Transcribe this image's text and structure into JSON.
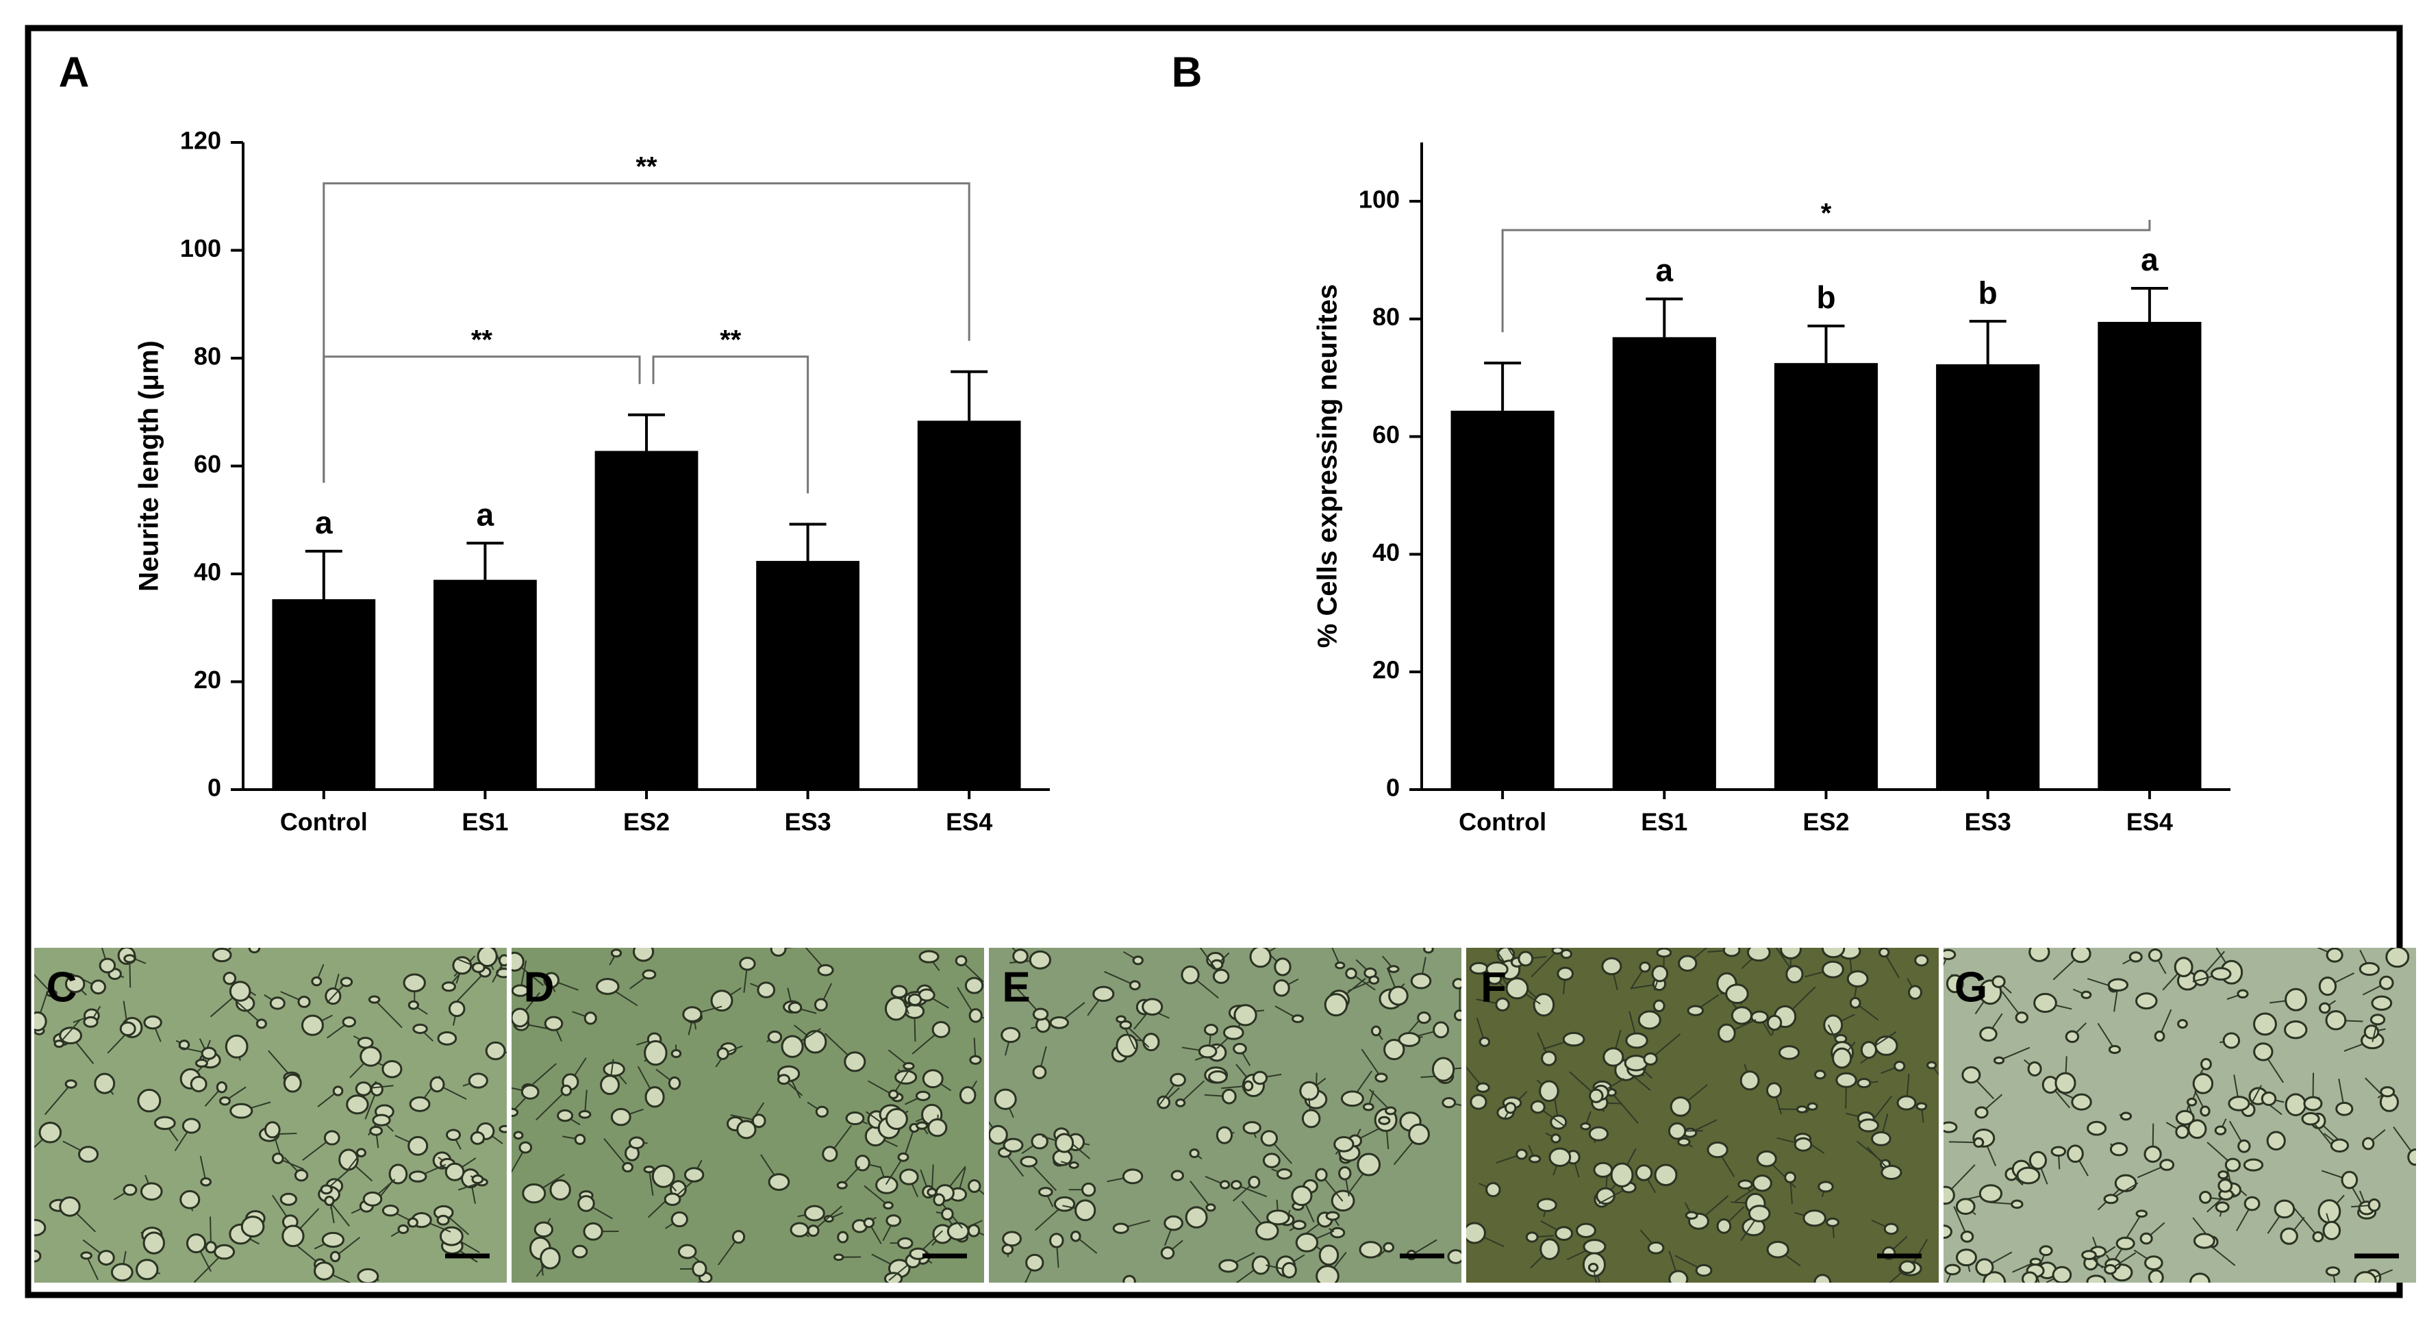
{
  "chart_data": [
    {
      "type": "bar",
      "panel": "A",
      "y_label": "Neurite length (μm)",
      "categories": [
        "Control",
        "ES1",
        "ES2",
        "ES3",
        "ES4"
      ],
      "values": [
        35.3,
        38.9,
        62.8,
        42.4,
        68.4
      ],
      "errors": [
        8.9,
        6.8,
        6.7,
        6.8,
        9.1
      ],
      "color": "#000000",
      "ylim": [
        0,
        120
      ],
      "yticks": [
        0,
        20,
        40,
        60,
        80,
        100,
        120
      ],
      "group_letters": [
        "a",
        "a",
        null,
        null,
        null
      ],
      "comparisons": [
        {
          "from": "Control",
          "to": "ES2",
          "label": "**"
        },
        {
          "from": "ES2",
          "to": "ES3",
          "label": "**"
        },
        {
          "from": "Control",
          "to": "ES4",
          "label": "**"
        }
      ]
    },
    {
      "type": "bar",
      "panel": "B",
      "y_label": "% Cells expressing neurites",
      "categories": [
        "Control",
        "ES1",
        "ES2",
        "ES3",
        "ES4"
      ],
      "values": [
        64.4,
        76.9,
        72.5,
        72.3,
        79.5
      ],
      "errors": [
        8.1,
        6.5,
        6.3,
        7.3,
        5.7
      ],
      "color": "#000000",
      "ylim": [
        0,
        110
      ],
      "yticks": [
        0,
        20,
        40,
        60,
        80,
        100
      ],
      "group_letters": [
        null,
        "a",
        "b",
        "b",
        "a"
      ],
      "comparisons": [
        {
          "from": "Control",
          "to": "ES4",
          "label": "*"
        }
      ]
    }
  ],
  "micrographs": [
    {
      "label": "C"
    },
    {
      "label": "D"
    },
    {
      "label": "E"
    },
    {
      "label": "F"
    },
    {
      "label": "G"
    }
  ]
}
